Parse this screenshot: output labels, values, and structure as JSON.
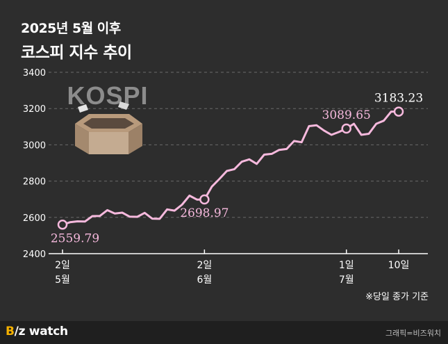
{
  "title_line1": "2025년 5월 이후",
  "title_line2": "코스피 지수 추이",
  "logo_text": "KOSPI",
  "note": "※당일 종가 기준",
  "footer": {
    "brand_b": "B",
    "brand_rest": "/z watch",
    "credit": "그래픽=비즈워치"
  },
  "colors": {
    "background": "#2d2d2d",
    "line": "#f6b9dd",
    "grid": "#6a6a6a",
    "text": "#ffffff"
  },
  "chart_data": {
    "type": "line",
    "title": "코스피 지수 추이",
    "xlabel": "",
    "ylabel": "",
    "ylim": [
      2400,
      3400
    ],
    "yticks": [
      2400,
      2600,
      2800,
      3000,
      3200,
      3400
    ],
    "xtick_labels": [
      {
        "date": "2025-05-02",
        "line1": "2일",
        "line2": "5월"
      },
      {
        "date": "2025-06-02",
        "line1": "2일",
        "line2": "6월"
      },
      {
        "date": "2025-07-01",
        "line1": "1일",
        "line2": "7월"
      },
      {
        "date": "2025-07-10",
        "line1": "10일",
        "line2": ""
      }
    ],
    "x": [
      "2025-05-02",
      "2025-05-07",
      "2025-05-08",
      "2025-05-09",
      "2025-05-12",
      "2025-05-13",
      "2025-05-14",
      "2025-05-15",
      "2025-05-16",
      "2025-05-19",
      "2025-05-20",
      "2025-05-21",
      "2025-05-22",
      "2025-05-23",
      "2025-05-26",
      "2025-05-27",
      "2025-05-28",
      "2025-05-29",
      "2025-05-30",
      "2025-06-02",
      "2025-06-04",
      "2025-06-05",
      "2025-06-09",
      "2025-06-10",
      "2025-06-11",
      "2025-06-12",
      "2025-06-13",
      "2025-06-16",
      "2025-06-17",
      "2025-06-18",
      "2025-06-19",
      "2025-06-20",
      "2025-06-23",
      "2025-06-24",
      "2025-06-25",
      "2025-06-26",
      "2025-06-27",
      "2025-06-30",
      "2025-07-01",
      "2025-07-02",
      "2025-07-03",
      "2025-07-04",
      "2025-07-07",
      "2025-07-08",
      "2025-07-09",
      "2025-07-10"
    ],
    "values": [
      2559.79,
      2573,
      2578,
      2577,
      2607,
      2608,
      2640,
      2621,
      2626,
      2604,
      2603,
      2625,
      2593,
      2592,
      2644,
      2637,
      2670,
      2720,
      2698,
      2698.97,
      2770,
      2812,
      2856,
      2866,
      2907,
      2920,
      2895,
      2946,
      2950,
      2972,
      2977,
      3021,
      3014,
      3103,
      3108,
      3079,
      3055,
      3071,
      3089.65,
      3116,
      3055,
      3061,
      3116,
      3133,
      3183.23,
      3183.23
    ],
    "annotations": [
      {
        "x": "2025-05-02",
        "label": "2559.79",
        "position": "below"
      },
      {
        "x": "2025-06-02",
        "label": "2698.97",
        "position": "below"
      },
      {
        "x": "2025-07-01",
        "label": "3089.65",
        "position": "above"
      },
      {
        "x": "2025-07-10",
        "label": "3183.23",
        "position": "above"
      }
    ],
    "grid": true,
    "grid_style": "dashed-horizontal"
  }
}
